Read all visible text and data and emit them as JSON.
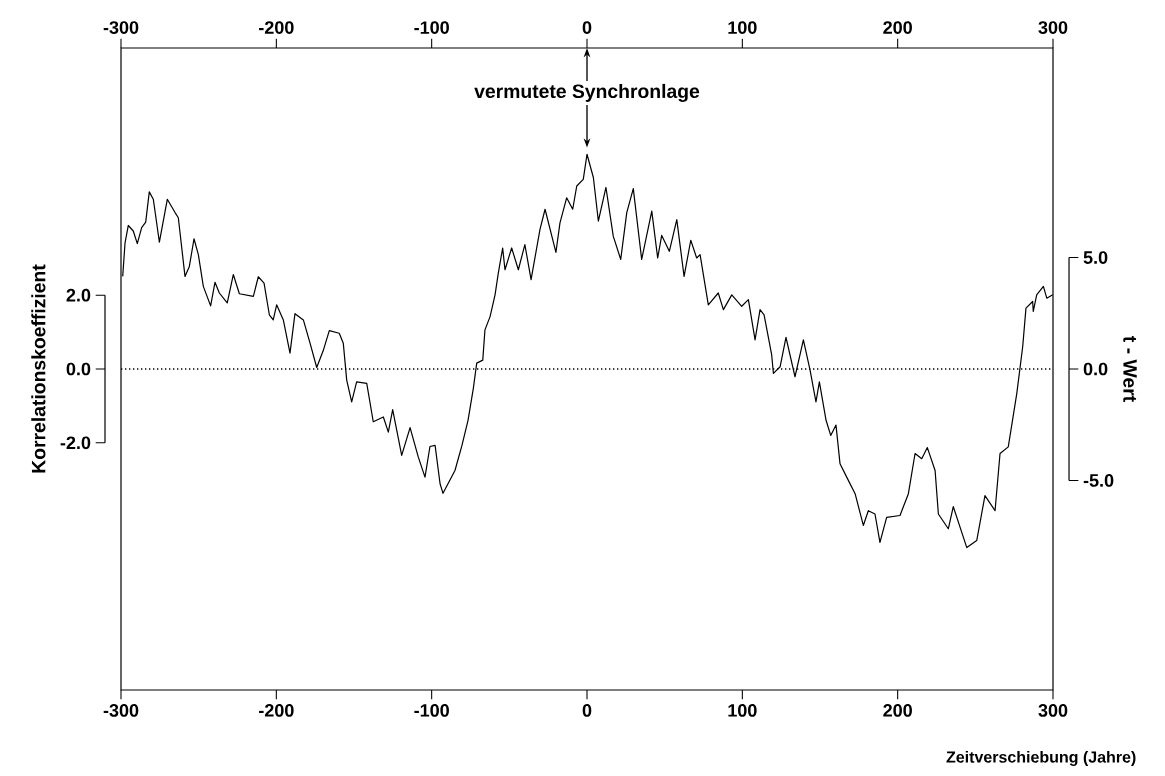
{
  "chart_data": {
    "type": "line",
    "xlabel": "Zeitverschiebung (Jahre)",
    "ylabel": "Korrelationskoeffizient",
    "y2label": "t - Wert",
    "xlim": [
      -300,
      300
    ],
    "xticks": [
      -300,
      -200,
      -100,
      0,
      100,
      200,
      300
    ],
    "x2lim": [
      -300,
      300
    ],
    "x2ticks": [
      -300,
      -200,
      -100,
      0,
      100,
      200,
      300
    ],
    "ylim": [
      -8.7,
      8.7
    ],
    "yticks": [
      {
        "value": -2,
        "label": "-2.0"
      },
      {
        "value": 0,
        "label": "0.0"
      },
      {
        "value": 2,
        "label": "2.0"
      }
    ],
    "y2lim": [
      -14.4,
      14.4
    ],
    "y2ticks": [
      {
        "value": -5,
        "label": "-5.0"
      },
      {
        "value": 0,
        "label": "0.0"
      },
      {
        "value": 5,
        "label": "5.0"
      }
    ],
    "ref_lines": [
      {
        "axis": "y",
        "value": 0,
        "color": "#000000",
        "line_style": "dotted"
      }
    ],
    "annotations": [
      {
        "text": "vermutete Synchronlage",
        "x": 0,
        "y": 5.82
      }
    ],
    "x": [
      -298.9,
      -297.4,
      -295.3,
      -292.1,
      -289.5,
      -286.7,
      -284.1,
      -281.8,
      -279.2,
      -275.3,
      -270.2,
      -265.2,
      -263.1,
      -258.8,
      -256.0,
      -253.0,
      -250.2,
      -247.0,
      -242.3,
      -239.5,
      -236.7,
      -231.6,
      -227.7,
      -223.8,
      -214.8,
      -211.6,
      -207.9,
      -204.5,
      -202.0,
      -199.8,
      -195.5,
      -191.2,
      -188.0,
      -182.6,
      -178.3,
      -174.0,
      -169.8,
      -165.9,
      -159.5,
      -156.9,
      -154.7,
      -151.5,
      -148.3,
      -141.8,
      -137.6,
      -131.1,
      -127.9,
      -125.1,
      -119.3,
      -113.9,
      -108.6,
      -104.3,
      -101.1,
      -97.8,
      -94.6,
      -92.7,
      -85.0,
      -80.5,
      -76.6,
      -73.2,
      -71.0,
      -67.1,
      -65.7,
      -62.4,
      -59.2,
      -57.1,
      -54.3,
      -52.8,
      -48.5,
      -44.2,
      -40.0,
      -36.0,
      -30.3,
      -27.0,
      -20.0,
      -17.4,
      -13.1,
      -9.2,
      -6.6,
      -2.4,
      0.0,
      4.1,
      7.3,
      12.2,
      16.9,
      21.7,
      25.6,
      29.8,
      35.2,
      41.7,
      45.5,
      48.1,
      53.0,
      57.8,
      62.5,
      66.8,
      70.6,
      72.8,
      78.1,
      84.5,
      87.8,
      93.2,
      99.6,
      103.9,
      108.2,
      111.4,
      114.0,
      118.9,
      120.0,
      124.3,
      128.1,
      133.9,
      139.3,
      143.6,
      147.4,
      149.6,
      153.9,
      156.9,
      160.3,
      162.9,
      167.2,
      172.6,
      177.9,
      181.1,
      185.4,
      188.6,
      192.9,
      201.5,
      206.9,
      211.2,
      215.5,
      219.1,
      224.1,
      226.2,
      232.6,
      235.8,
      244.5,
      250.9,
      256.2,
      262.7,
      265.9,
      271.2,
      276.7,
      280.5,
      282.6,
      286.9,
      287.3,
      289.5,
      293.8,
      296.0,
      299.8
    ],
    "series": [
      {
        "color": "#000000",
        "values": [
          2.51,
          3.42,
          3.89,
          3.74,
          3.4,
          3.83,
          3.98,
          4.8,
          4.6,
          3.44,
          4.6,
          4.24,
          4.1,
          2.51,
          2.78,
          3.53,
          3.1,
          2.24,
          1.71,
          2.35,
          2.06,
          1.79,
          2.56,
          2.04,
          1.97,
          2.5,
          2.33,
          1.47,
          1.33,
          1.74,
          1.33,
          0.43,
          1.5,
          1.33,
          0.7,
          0.04,
          0.5,
          1.04,
          0.97,
          0.7,
          -0.3,
          -0.89,
          -0.35,
          -0.39,
          -1.43,
          -1.3,
          -1.71,
          -1.1,
          -2.34,
          -1.59,
          -2.39,
          -2.93,
          -2.1,
          -2.07,
          -3.11,
          -3.37,
          -2.75,
          -2.07,
          -1.39,
          -0.53,
          0.16,
          0.24,
          1.06,
          1.42,
          2.01,
          2.6,
          3.28,
          2.69,
          3.28,
          2.69,
          3.37,
          2.42,
          3.78,
          4.33,
          3.16,
          3.96,
          4.64,
          4.33,
          4.96,
          5.14,
          5.82,
          5.19,
          4.01,
          4.92,
          3.6,
          2.97,
          4.24,
          4.89,
          2.97,
          4.28,
          3.01,
          3.62,
          3.19,
          4.05,
          2.51,
          3.49,
          3.01,
          3.1,
          1.74,
          2.06,
          1.61,
          2.01,
          1.7,
          1.88,
          0.79,
          1.61,
          1.47,
          0.38,
          -0.12,
          0.06,
          0.86,
          -0.21,
          0.79,
          -0.03,
          -0.89,
          -0.35,
          -1.39,
          -1.8,
          -1.52,
          -2.57,
          -2.93,
          -3.38,
          -4.24,
          -3.84,
          -3.93,
          -4.7,
          -4.02,
          -3.97,
          -3.38,
          -2.29,
          -2.43,
          -2.13,
          -2.75,
          -3.93,
          -4.33,
          -3.73,
          -4.84,
          -4.65,
          -3.43,
          -3.84,
          -2.29,
          -2.11,
          -0.66,
          0.61,
          1.65,
          1.83,
          1.56,
          2.01,
          2.24,
          1.92,
          2.01
        ]
      }
    ]
  }
}
